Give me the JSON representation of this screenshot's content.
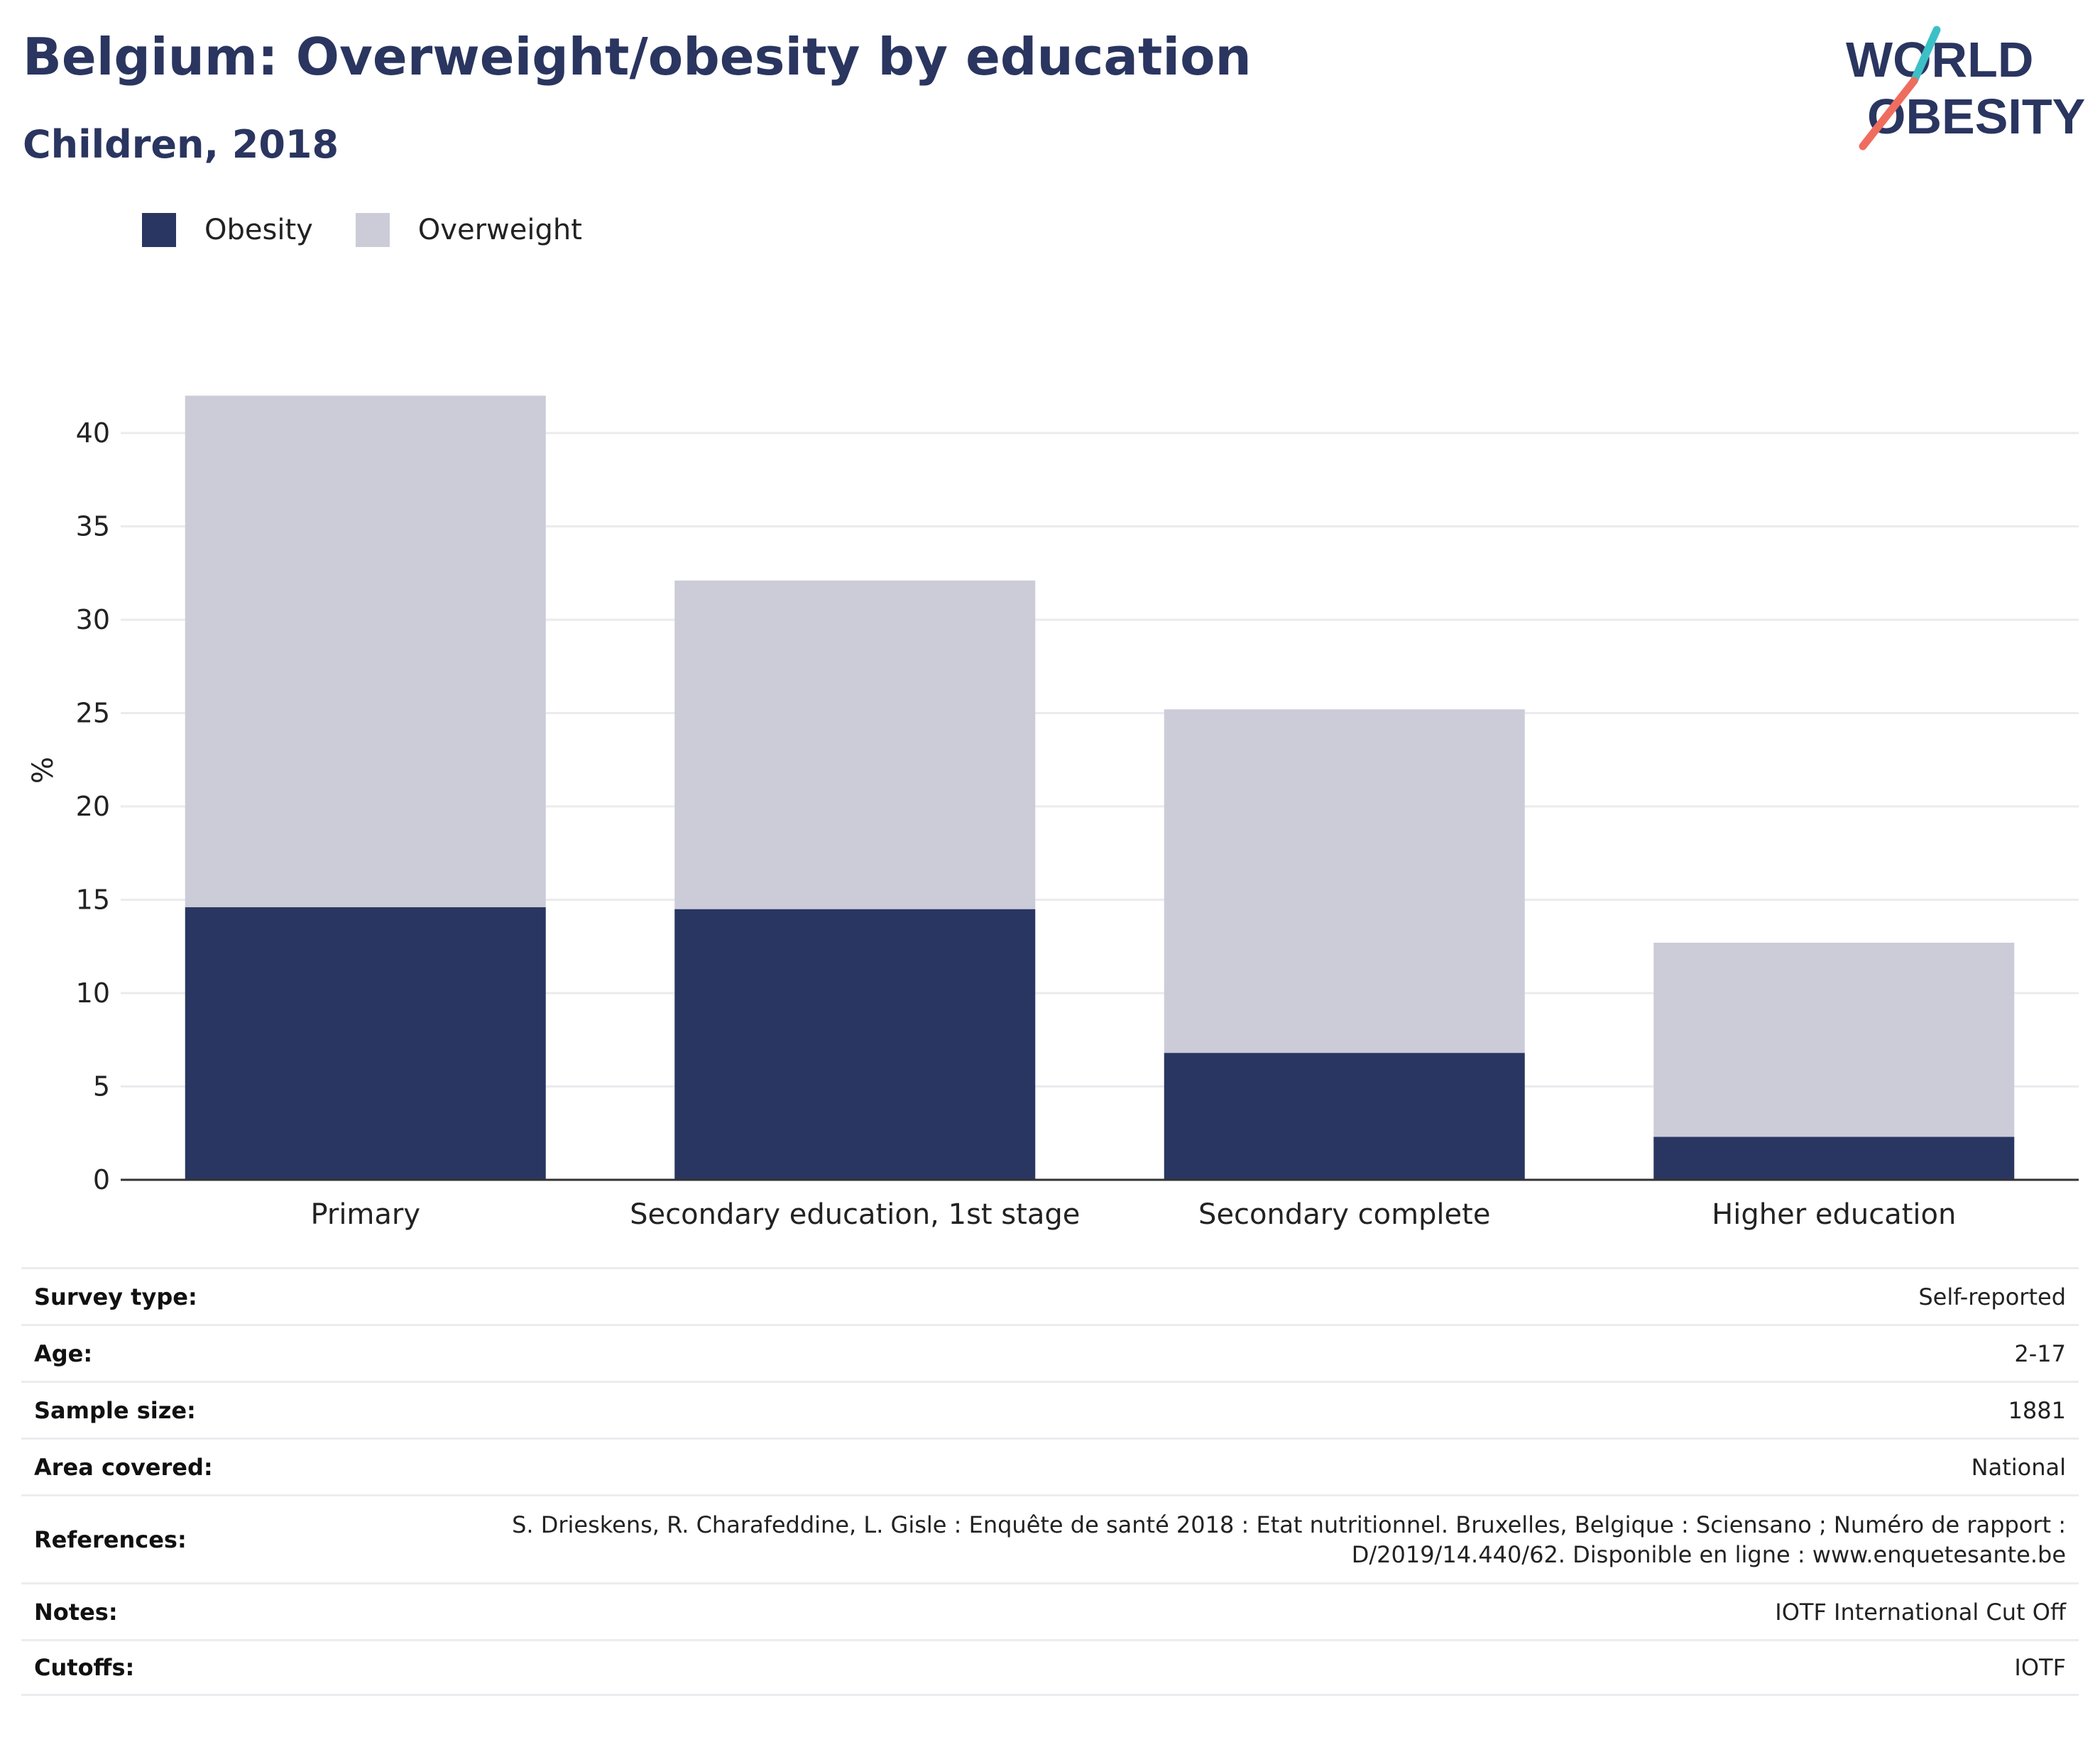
{
  "header": {
    "title": "Belgium: Overweight/obesity by education",
    "subtitle": "Children, 2018"
  },
  "logo": {
    "line1": "WORLD",
    "line2": "OBESITY",
    "accent_teal": "#3cc0c6",
    "accent_coral": "#ef6d5f",
    "text_color": "#2a3560"
  },
  "colors": {
    "obesity": "#2a3662",
    "overweight": "#cbccd8",
    "axis": "#333333",
    "grid": "#ebebef"
  },
  "chart_data": {
    "type": "bar",
    "stacked": true,
    "categories": [
      "Primary",
      "Secondary education, 1st stage",
      "Secondary complete",
      "Higher education"
    ],
    "series": [
      {
        "name": "Obesity",
        "values": [
          14.6,
          14.5,
          6.8,
          2.3
        ]
      },
      {
        "name": "Overweight",
        "values": [
          27.4,
          17.6,
          18.4,
          10.4
        ]
      }
    ],
    "ylabel": "%",
    "ylim": [
      0,
      42
    ],
    "yticks": [
      0,
      5,
      10,
      15,
      20,
      25,
      30,
      35,
      40
    ],
    "grid": true,
    "legend_position": "top-left"
  },
  "meta": [
    {
      "label": "Survey type:",
      "value": "Self-reported"
    },
    {
      "label": "Age:",
      "value": "2-17"
    },
    {
      "label": "Sample size:",
      "value": "1881"
    },
    {
      "label": "Area covered:",
      "value": "National"
    },
    {
      "label": "References:",
      "value": "S. Drieskens, R. Charafeddine, L. Gisle : Enquête de santé 2018 : Etat nutritionnel. Bruxelles, Belgique : Sciensano ; Numéro de rapport : D/2019/14.440/62. Disponible en ligne : www.enquetesante.be"
    },
    {
      "label": "Notes:",
      "value": "IOTF International Cut Off"
    },
    {
      "label": "Cutoffs:",
      "value": "IOTF"
    }
  ]
}
